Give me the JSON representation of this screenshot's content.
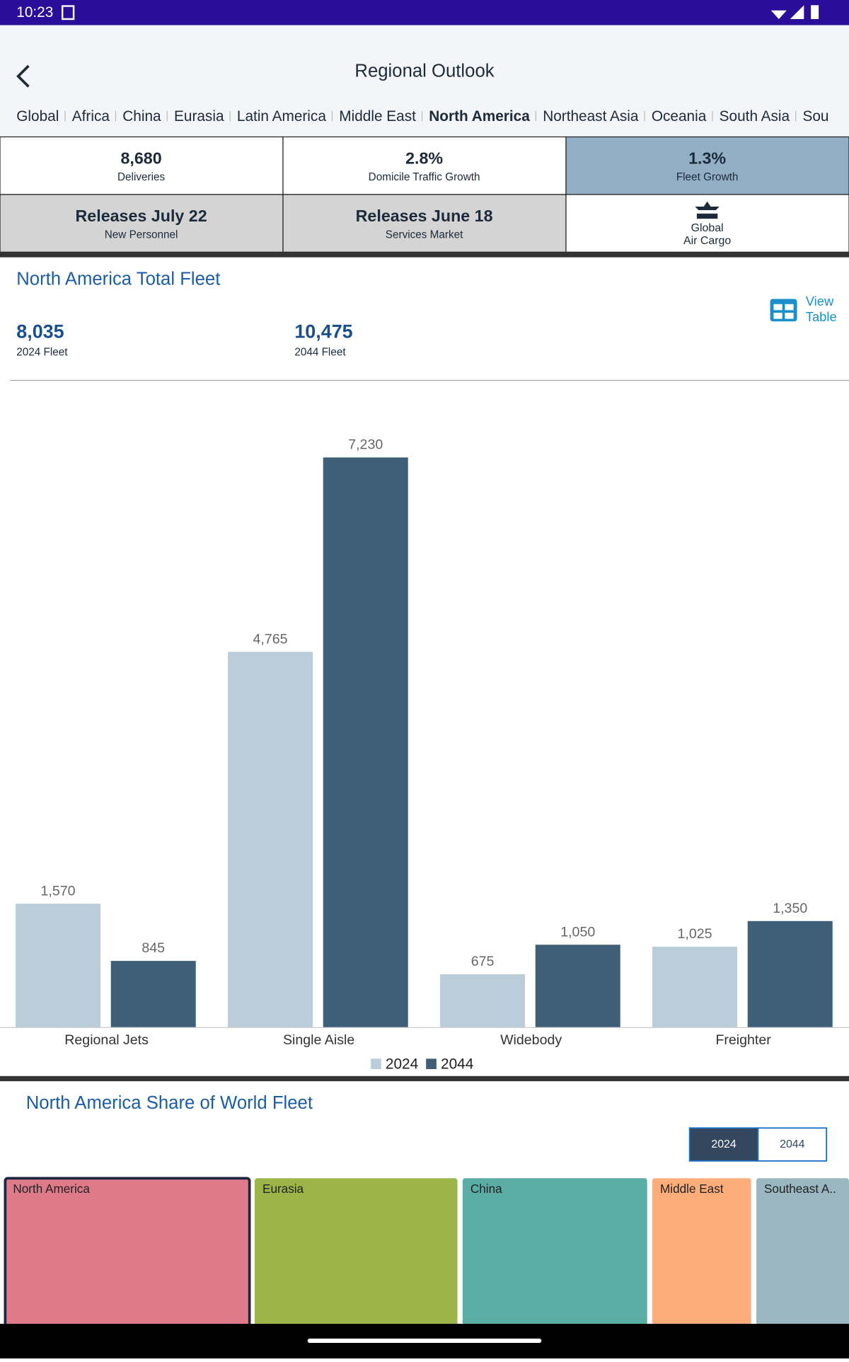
{
  "status_bar": {
    "time": "10:23"
  },
  "header": {
    "title": "Regional Outlook",
    "tabs": [
      "Global",
      "Africa",
      "China",
      "Eurasia",
      "Latin America",
      "Middle East",
      "North America",
      "Northeast Asia",
      "Oceania",
      "South Asia",
      "Southeast Asia"
    ],
    "selected_tab": 6
  },
  "tiles": [
    {
      "value": "8,680",
      "label": "Deliveries"
    },
    {
      "value": "2.8%",
      "label": "Domicile Traffic Growth"
    },
    {
      "value": "1.3%",
      "label": "Fleet Growth"
    },
    {
      "value": "Releases July 22",
      "label": "New Personnel"
    },
    {
      "value": "Releases June 18",
      "label": "Services Market"
    },
    {
      "lines": [
        "Global",
        "Air Cargo"
      ]
    }
  ],
  "fleet": {
    "title": "North America Total Fleet",
    "stats": [
      {
        "value": "8,035",
        "label": "2024 Fleet"
      },
      {
        "value": "10,475",
        "label": "2044 Fleet"
      }
    ],
    "view_table": [
      "View",
      "Table"
    ]
  },
  "chart_data": {
    "type": "bar",
    "categories": [
      "Regional Jets",
      "Single Aisle",
      "Widebody",
      "Freighter"
    ],
    "series": [
      {
        "name": "2024",
        "color": "#bccdda",
        "values": [
          1570,
          4765,
          675,
          1025
        ],
        "value_labels": [
          "1,570",
          "4,765",
          "675",
          "1,025"
        ]
      },
      {
        "name": "2044",
        "color": "#3f5f78",
        "values": [
          845,
          7230,
          1050,
          1350
        ],
        "value_labels": [
          "845",
          "7,230",
          "1,050",
          "1,350"
        ]
      }
    ],
    "legend": "bottom"
  },
  "share": {
    "title": "North America Share of World Fleet",
    "toggle": [
      "2024",
      "2044"
    ],
    "selected": 0,
    "regions": [
      "North America",
      "Eurasia",
      "China",
      "Middle East",
      "Southeast A.."
    ]
  }
}
